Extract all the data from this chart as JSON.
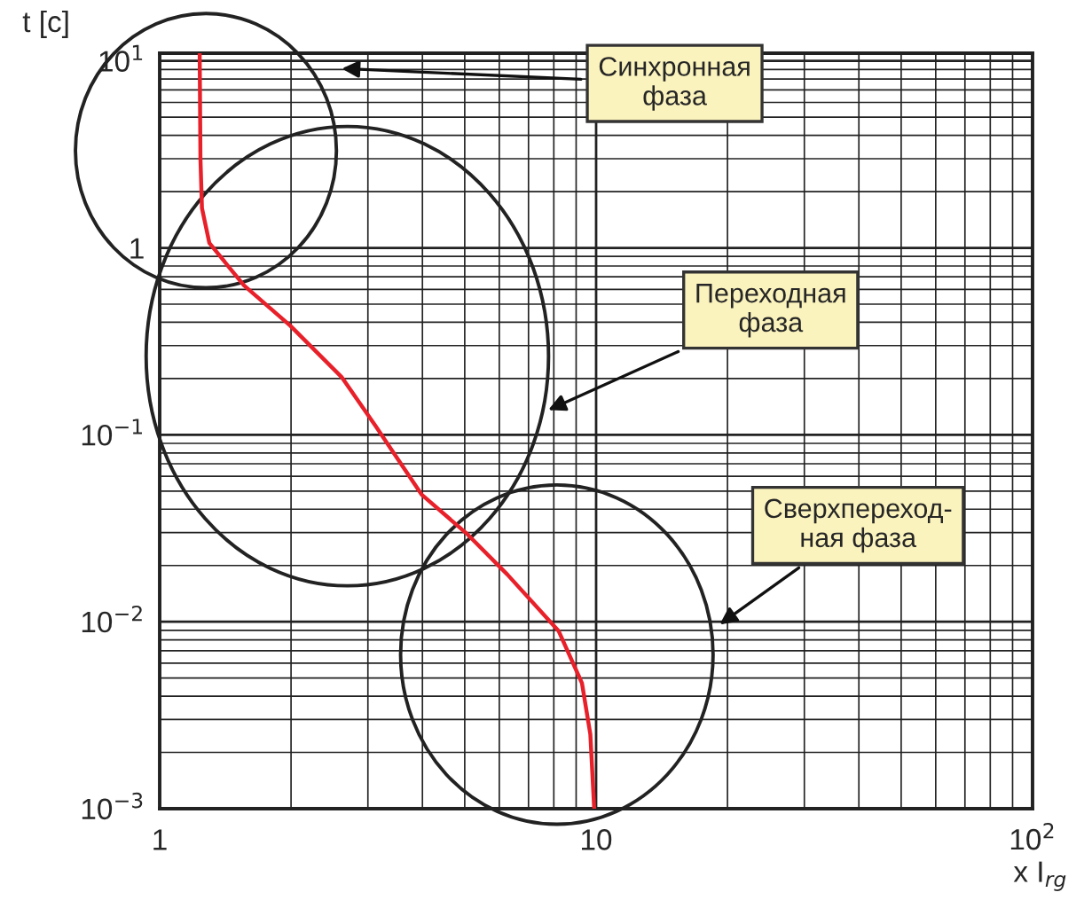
{
  "chart_data": {
    "type": "line",
    "log": "xy",
    "grid": true,
    "marker": "none",
    "line_style": "solid",
    "xlabel": "x I$_{rg}$",
    "ylabel": "t [c]",
    "xlim": [
      1,
      100
    ],
    "ylim": [
      0.001,
      11
    ],
    "xticks": [
      1,
      10,
      {
        "value": 100,
        "label": "10$^{2}$"
      }
    ],
    "yticks": [
      {
        "value": 0.001,
        "label": "10$^{−3}$"
      },
      {
        "value": 0.01,
        "label": "10$^{−2}$"
      },
      {
        "value": 0.1,
        "label": "10$^{−1}$"
      },
      1,
      {
        "value": 10,
        "label": "10$^{1}$"
      }
    ],
    "series": [
      {
        "color": "#e8202a",
        "x": [
          1.235,
          1.24,
          1.25,
          1.3,
          1.56,
          1.99,
          2.61,
          3.12,
          3.98,
          5.07,
          6.26,
          8.21,
          9.28,
          9.7,
          9.9
        ],
        "values": [
          11,
          3,
          1.63,
          1.06,
          0.63,
          0.384,
          0.204,
          0.112,
          0.048,
          0.0294,
          0.0179,
          0.0089,
          0.0047,
          0.0025,
          0.001
        ]
      }
    ],
    "annotations": [
      "Синхронная\nфаза",
      "Переходная\nфаза",
      "Сверхпереход-\nная фаза"
    ]
  }
}
